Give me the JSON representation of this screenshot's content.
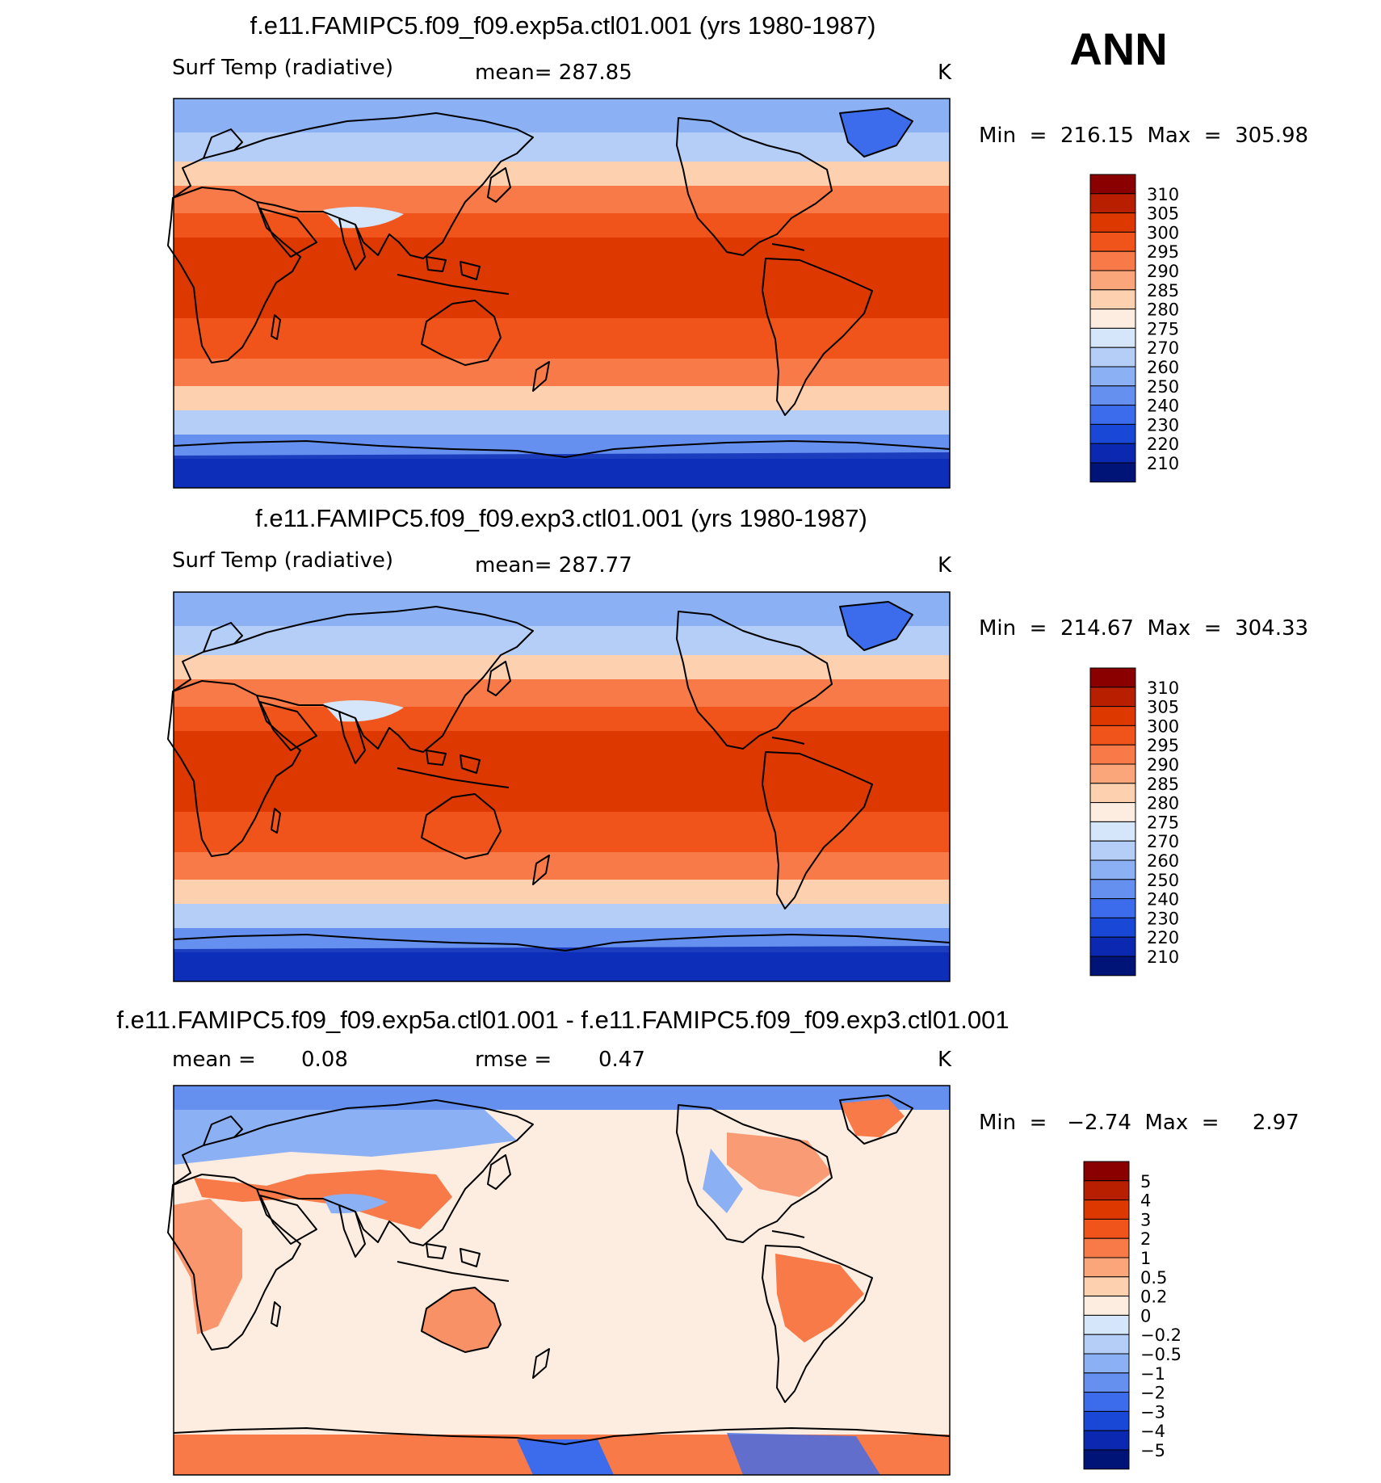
{
  "season": "ANN",
  "chart_data": [
    {
      "type": "heatmap",
      "title": "f.e11.FAMIPC5.f09_f09.exp5a.ctl01.001 (yrs 1980-1987)",
      "variable": "Surf Temp (radiative)",
      "mean_text": "mean=  287.85",
      "units": "K",
      "minmax_text": "Min  =  216.15  Max  =  305.98",
      "min": 216.15,
      "max": 305.98,
      "colorbar_ticks": [
        "310",
        "305",
        "300",
        "295",
        "290",
        "285",
        "280",
        "275",
        "270",
        "260",
        "250",
        "240",
        "230",
        "220",
        "210"
      ],
      "colorbar_colors": [
        "#8a0000",
        "#b81e00",
        "#dc3800",
        "#f0541a",
        "#f77a48",
        "#fba67a",
        "#fdd0b0",
        "#fdece0",
        "#d6e6fa",
        "#b4cef7",
        "#8cb0f4",
        "#6690f0",
        "#3c6cec",
        "#1a48d6",
        "#0a28b0",
        "#001478"
      ]
    },
    {
      "type": "heatmap",
      "title": "f.e11.FAMIPC5.f09_f09.exp3.ctl01.001 (yrs 1980-1987)",
      "variable": "Surf Temp (radiative)",
      "mean_text": "mean=  287.77",
      "units": "K",
      "minmax_text": "Min  =  214.67  Max  =  304.33",
      "min": 214.67,
      "max": 304.33,
      "colorbar_ticks": [
        "310",
        "305",
        "300",
        "295",
        "290",
        "285",
        "280",
        "275",
        "270",
        "260",
        "250",
        "240",
        "230",
        "220",
        "210"
      ],
      "colorbar_colors": [
        "#8a0000",
        "#b81e00",
        "#dc3800",
        "#f0541a",
        "#f77a48",
        "#fba67a",
        "#fdd0b0",
        "#fdece0",
        "#d6e6fa",
        "#b4cef7",
        "#8cb0f4",
        "#6690f0",
        "#3c6cec",
        "#1a48d6",
        "#0a28b0",
        "#001478"
      ]
    },
    {
      "type": "heatmap",
      "title": "f.e11.FAMIPC5.f09_f09.exp5a.ctl01.001 - f.e11.FAMIPC5.f09_f09.exp3.ctl01.001",
      "mean_label": "mean =",
      "mean_value": "0.08",
      "rmse_label": "rmse =",
      "rmse_value": "0.47",
      "units": "K",
      "minmax_text": "Min  =   −2.74  Max  =     2.97",
      "min": -2.74,
      "max": 2.97,
      "colorbar_ticks": [
        "5",
        "4",
        "3",
        "2",
        "1",
        "0.5",
        "0.2",
        "0",
        "−0.2",
        "−0.5",
        "−1",
        "−2",
        "−3",
        "−4",
        "−5"
      ],
      "colorbar_colors": [
        "#8a0000",
        "#b81e00",
        "#dc3800",
        "#f0541a",
        "#f77a48",
        "#fba67a",
        "#fdd0b0",
        "#fdece0",
        "#d6e6fa",
        "#b4cef7",
        "#8cb0f4",
        "#6690f0",
        "#3c6cec",
        "#1a48d6",
        "#0a28b0",
        "#001478"
      ]
    }
  ]
}
